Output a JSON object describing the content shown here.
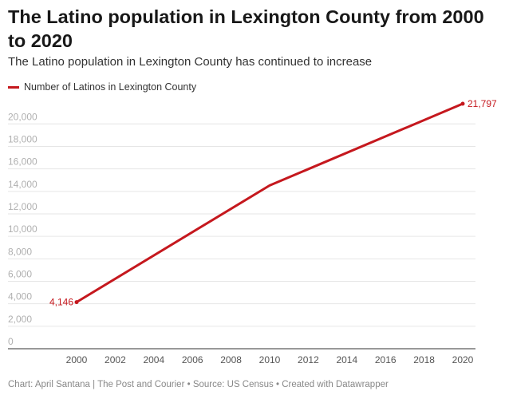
{
  "header": {
    "title": "The Latino population in Lexington County from 2000 to 2020",
    "subtitle": "The Latino population in Lexington County has continued to increase"
  },
  "legend": {
    "label": "Number of Latinos in Lexington County"
  },
  "footer": {
    "text": "Chart: April Santana | The Post and Courier • Source: US Census • Created with Datawrapper"
  },
  "colors": {
    "line": "#c5181e",
    "grid": "#e6e6e6",
    "tick": "#b0b0b0",
    "xtick": "#555555",
    "baseline": "#333333"
  },
  "chart_data": {
    "type": "line",
    "title": "The Latino population in Lexington County from 2000 to 2020",
    "subtitle": "The Latino population in Lexington County has continued to increase",
    "xlabel": "",
    "ylabel": "",
    "xlim": [
      2000,
      2020
    ],
    "ylim": [
      0,
      21797
    ],
    "x_ticks": [
      "2000",
      "2002",
      "2004",
      "2006",
      "2008",
      "2010",
      "2012",
      "2014",
      "2016",
      "2018",
      "2020"
    ],
    "y_ticks": [
      "0",
      "2,000",
      "4,000",
      "6,000",
      "8,000",
      "10,000",
      "12,000",
      "14,000",
      "16,000",
      "18,000",
      "20,000"
    ],
    "grid": true,
    "legend_position": "top-left",
    "series": [
      {
        "name": "Number of Latinos in Lexington County",
        "color": "#c5181e",
        "x": [
          2000,
          2010,
          2020
        ],
        "y": [
          4146,
          14528,
          21797
        ]
      }
    ],
    "annotations": [
      {
        "label": "4,146",
        "x": 2000,
        "y": 4146
      },
      {
        "label": "21,797",
        "x": 2020,
        "y": 21797
      }
    ]
  }
}
